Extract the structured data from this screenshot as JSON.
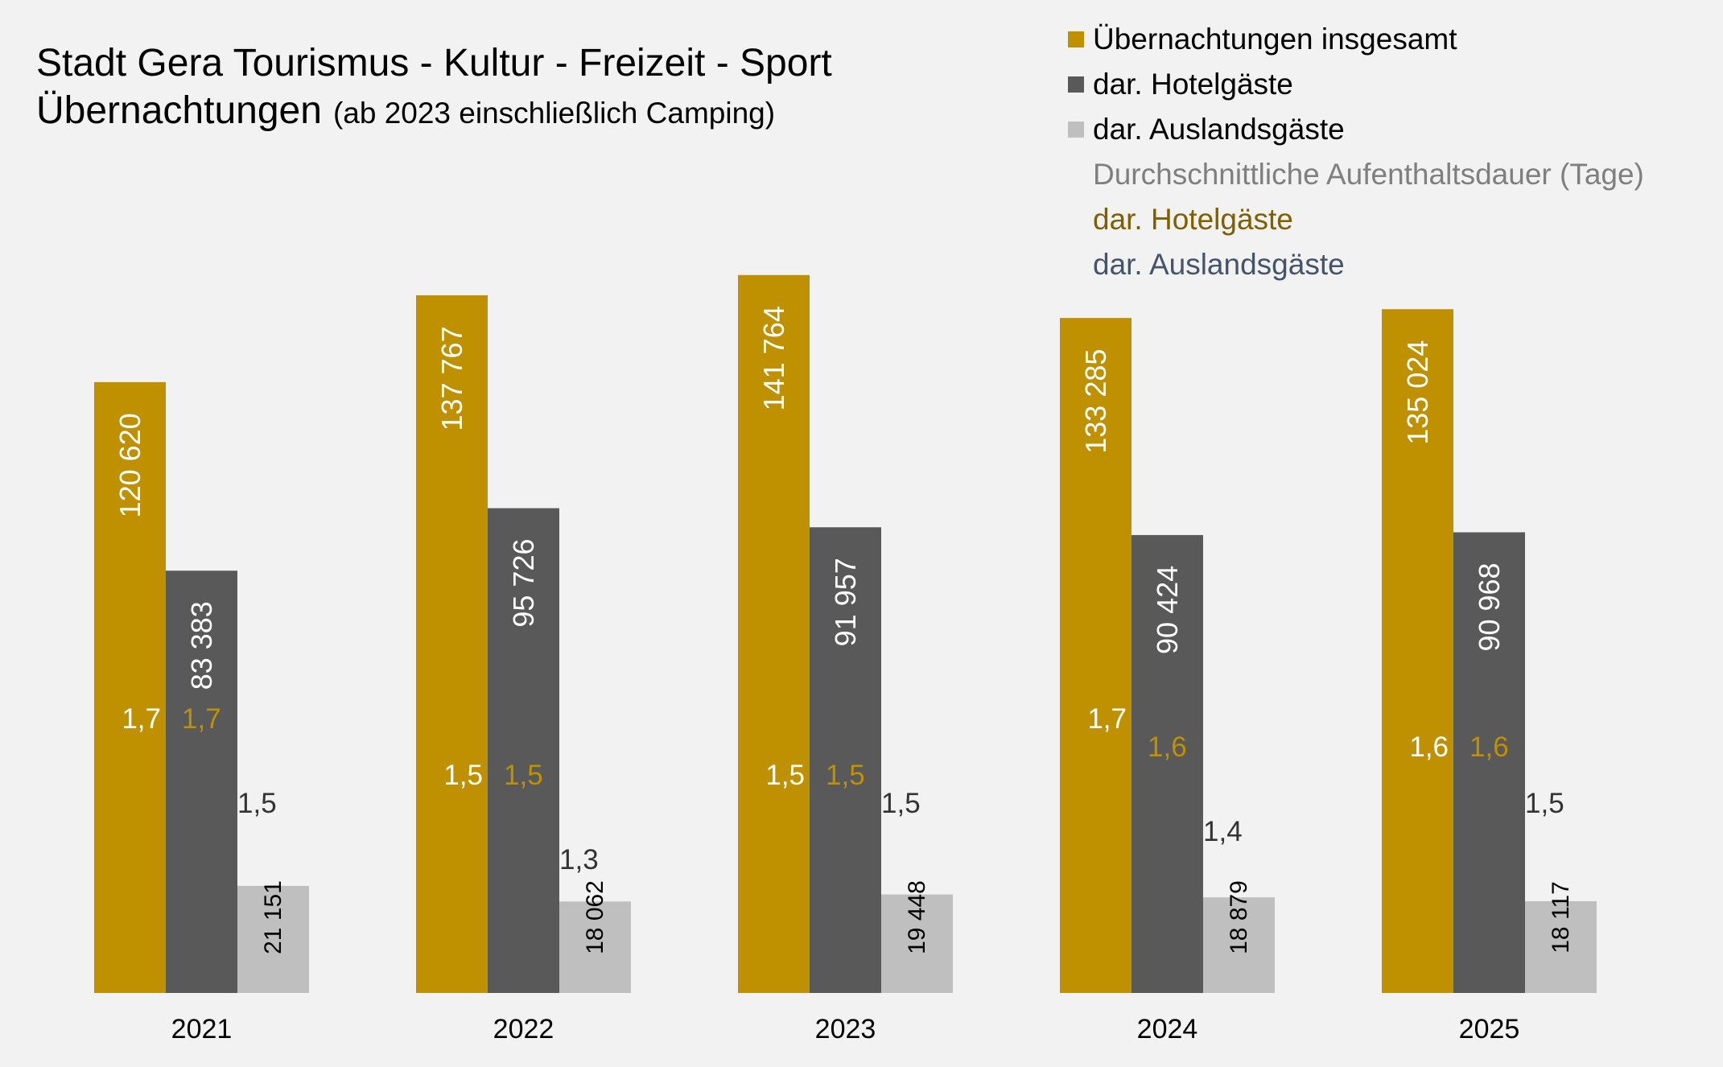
{
  "colors": {
    "background": "#f2f2f2",
    "total": "#bf9000",
    "hotel": "#595959",
    "foreign": "#bfbfbf",
    "dur_total": "#ffffff",
    "dur_hotel": "#bf9000",
    "dur_foreign": "#333333",
    "legend_heading": "#7f7f7f",
    "legend_hotel_dur": "#7f6000",
    "legend_foreign_dur": "#44546a"
  },
  "chart_data": {
    "type": "bar",
    "title": "Stadt Gera Tourismus - Kultur - Freizeit - Sport",
    "subtitle_main": "Übernachtungen",
    "subtitle_note": "(ab 2023 einschließlich Camping)",
    "categories": [
      "2021",
      "2022",
      "2023",
      "2024",
      "2025"
    ],
    "ylim": [
      0,
      160000
    ],
    "grid": false,
    "legend_position": "top-right",
    "series": [
      {
        "name": "Übernachtungen insgesamt",
        "values": [
          120620,
          137767,
          141764,
          133285,
          135024
        ],
        "labels": [
          "120 620",
          "137 767",
          "141 764",
          "133 285",
          "135 024"
        ]
      },
      {
        "name": "dar. Hotelgäste",
        "values": [
          83383,
          95726,
          91957,
          90424,
          90968
        ],
        "labels": [
          "83 383",
          "95 726",
          "91 957",
          "90 424",
          "90 968"
        ]
      },
      {
        "name": "dar. Auslandsgäste",
        "values": [
          21151,
          18062,
          19448,
          18879,
          18117
        ],
        "labels": [
          "21 151",
          "18 062",
          "19 448",
          "18 879",
          "18 117"
        ]
      }
    ],
    "duration_heading": "Durchschnittliche Aufenthaltsdauer (Tage)",
    "duration_series": [
      {
        "name": "Durchschnittliche Aufenthaltsdauer (Tage)",
        "values": [
          1.7,
          1.5,
          1.5,
          1.7,
          1.6
        ],
        "labels": [
          "1,7",
          "1,5",
          "1,5",
          "1,7",
          "1,6"
        ]
      },
      {
        "name": "dar. Hotelgäste",
        "values": [
          1.7,
          1.5,
          1.5,
          1.6,
          1.6
        ],
        "labels": [
          "1,7",
          "1,5",
          "1,5",
          "1,6",
          "1,6"
        ]
      },
      {
        "name": "dar. Auslandsgäste",
        "values": [
          1.5,
          1.3,
          1.5,
          1.4,
          1.5
        ],
        "labels": [
          "1,5",
          "1,3",
          "1,5",
          "1,4",
          "1,5"
        ]
      }
    ]
  }
}
